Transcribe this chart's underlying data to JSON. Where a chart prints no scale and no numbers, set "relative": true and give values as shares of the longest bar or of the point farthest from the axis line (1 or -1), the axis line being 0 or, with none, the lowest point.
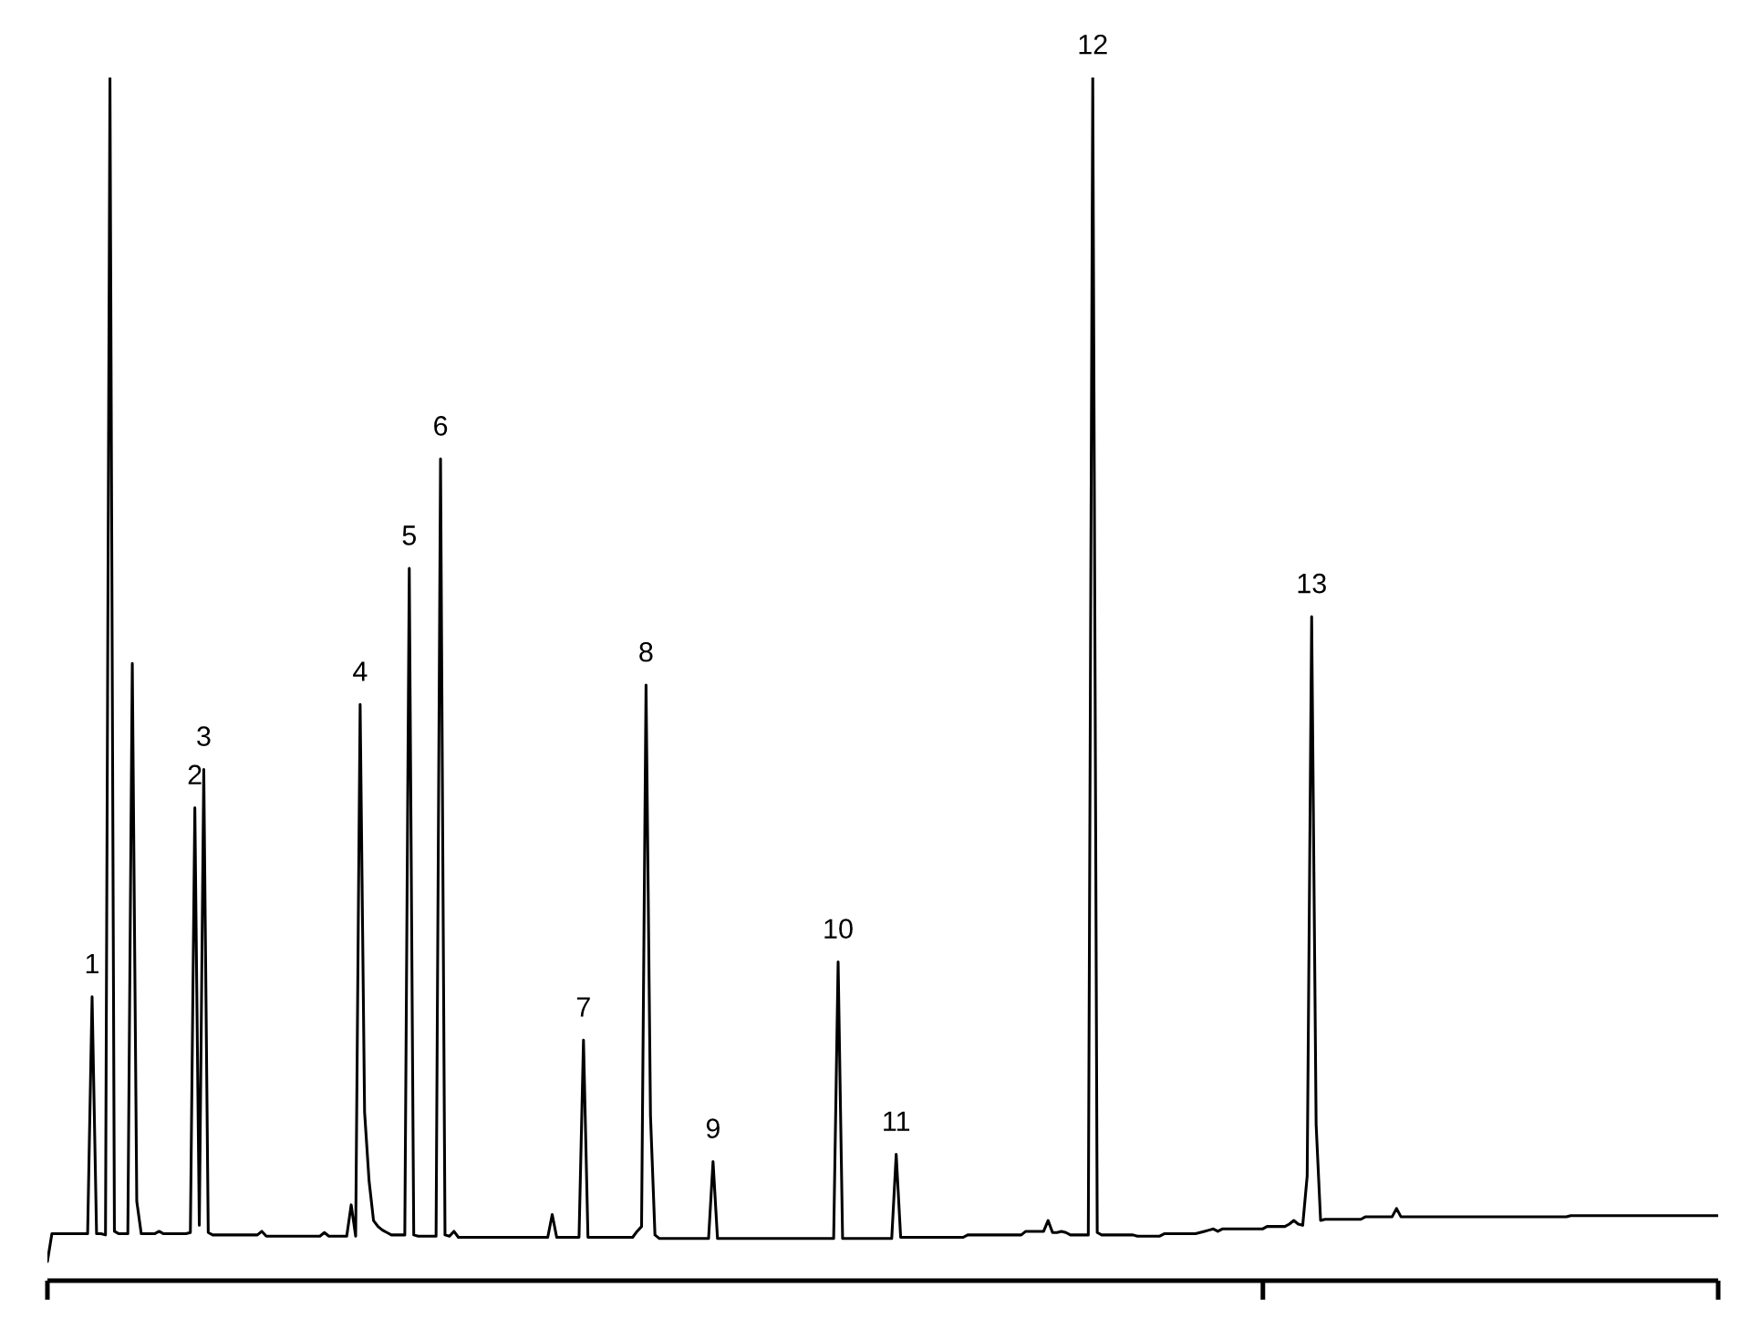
{
  "chart_data": {
    "type": "line",
    "relative": true,
    "tick_labels": false,
    "color": "#000000",
    "line_style": "solid",
    "categories": [
      null,
      null,
      null,
      null,
      null,
      null,
      null,
      null,
      null,
      null,
      null,
      null,
      null,
      null,
      null,
      null,
      null,
      null,
      null,
      null,
      null,
      null,
      null,
      null,
      null,
      null,
      null,
      null,
      null,
      null,
      null,
      null,
      null,
      null,
      null,
      null,
      null,
      null,
      null,
      null,
      null,
      null,
      null,
      null,
      null,
      null,
      null,
      null,
      null,
      null,
      null,
      null,
      null,
      null,
      null,
      null,
      null,
      null,
      null,
      null,
      null,
      null,
      null,
      null,
      null,
      null,
      null,
      null,
      null,
      null,
      null,
      null,
      null,
      null,
      null,
      null,
      null,
      null,
      null,
      null,
      null,
      null,
      null,
      null,
      null,
      null,
      null,
      null,
      null,
      null,
      null,
      null,
      null,
      null,
      null,
      null,
      null,
      null,
      null,
      null,
      null,
      null,
      null,
      null,
      null,
      null,
      null,
      null,
      null,
      null,
      null,
      null,
      null,
      null,
      null,
      null,
      null,
      null,
      null,
      null,
      null,
      null,
      null,
      null,
      null,
      null,
      null,
      null,
      null,
      null,
      null,
      null,
      null,
      null,
      null,
      null,
      null,
      null,
      null,
      null,
      null,
      null,
      null,
      null,
      null,
      null,
      null,
      null,
      null,
      null,
      null,
      null,
      null,
      null,
      null,
      null,
      null,
      null,
      null,
      null,
      null,
      null,
      null,
      null,
      null,
      null,
      null,
      null,
      null,
      null,
      null,
      null,
      null,
      null,
      null,
      null,
      null,
      null,
      null,
      null,
      null,
      null,
      null,
      null,
      null,
      null,
      null,
      null,
      null,
      null,
      null,
      null,
      null,
      null,
      null,
      null,
      null,
      null,
      null,
      null,
      null,
      null,
      null,
      null,
      null,
      null,
      null,
      null,
      null,
      null,
      null,
      null,
      null,
      null,
      null,
      null,
      null,
      null,
      null,
      null,
      null,
      null,
      null,
      null,
      null,
      null,
      null,
      null,
      null,
      null,
      null,
      null,
      null,
      null,
      null,
      null,
      null,
      null,
      null,
      null,
      null,
      null,
      null,
      null,
      null,
      null,
      null,
      null,
      null,
      null,
      null,
      null,
      null,
      null,
      null,
      null,
      null,
      null,
      null,
      null,
      null,
      null,
      null,
      null,
      null,
      null,
      null,
      null,
      null,
      null,
      null,
      null,
      null,
      null,
      null,
      null,
      null,
      null,
      null,
      null,
      null,
      null,
      null,
      null,
      null,
      null,
      null,
      null,
      null,
      null,
      null,
      null,
      null,
      null,
      null,
      null,
      null,
      null,
      null,
      null,
      null,
      null,
      null,
      null,
      null,
      null,
      null,
      null,
      null,
      null,
      null,
      null,
      null,
      null,
      null,
      null,
      null,
      null,
      null,
      null,
      null,
      null,
      null,
      null,
      null,
      null,
      null,
      null,
      null,
      null,
      null,
      null,
      null,
      null,
      null,
      null,
      null,
      null,
      null,
      null,
      null,
      null,
      null,
      null,
      null,
      null,
      null,
      null,
      null,
      null,
      null,
      null,
      null,
      null,
      null,
      null,
      null,
      null,
      null,
      null,
      null,
      null,
      null,
      null,
      null,
      null,
      null,
      null,
      null,
      null,
      null,
      null,
      null,
      null,
      null
    ],
    "values": [
      0.016,
      0.039,
      0.039,
      0.039,
      0.039,
      0.039,
      0.039,
      0.039,
      0.039,
      0.039,
      0.236,
      0.039,
      0.039,
      0.038,
      1,
      0.041,
      0.039,
      0.039,
      0.039,
      0.513,
      0.066,
      0.039,
      0.039,
      0.039,
      0.039,
      0.041,
      0.039,
      0.039,
      0.039,
      0.039,
      0.039,
      0.039,
      0.04,
      0.393,
      0.046,
      0.425,
      0.04,
      0.038,
      0.038,
      0.038,
      0.038,
      0.038,
      0.038,
      0.038,
      0.038,
      0.038,
      0.038,
      0.038,
      0.041,
      0.037,
      0.037,
      0.037,
      0.037,
      0.037,
      0.037,
      0.037,
      0.037,
      0.037,
      0.037,
      0.037,
      0.037,
      0.037,
      0.04,
      0.037,
      0.037,
      0.037,
      0.037,
      0.037,
      0.063,
      0.037,
      0.479,
      0.14,
      0.083,
      0.05,
      0.045,
      0.042,
      0.04,
      0.038,
      0.038,
      0.038,
      0.038,
      0.592,
      0.038,
      0.037,
      0.037,
      0.037,
      0.037,
      0.037,
      0.683,
      0.038,
      0.037,
      0.041,
      0.036,
      0.036,
      0.036,
      0.036,
      0.036,
      0.036,
      0.036,
      0.036,
      0.036,
      0.036,
      0.036,
      0.036,
      0.036,
      0.036,
      0.036,
      0.036,
      0.036,
      0.036,
      0.036,
      0.036,
      0.036,
      0.055,
      0.036,
      0.036,
      0.036,
      0.036,
      0.036,
      0.036,
      0.2,
      0.036,
      0.036,
      0.036,
      0.036,
      0.036,
      0.036,
      0.036,
      0.036,
      0.036,
      0.036,
      0.036,
      0.041,
      0.045,
      0.495,
      0.137,
      0.038,
      0.035,
      0.035,
      0.035,
      0.035,
      0.035,
      0.035,
      0.035,
      0.035,
      0.035,
      0.035,
      0.035,
      0.035,
      0.099,
      0.035,
      0.035,
      0.035,
      0.035,
      0.035,
      0.035,
      0.035,
      0.035,
      0.035,
      0.035,
      0.035,
      0.035,
      0.035,
      0.035,
      0.035,
      0.035,
      0.035,
      0.035,
      0.035,
      0.035,
      0.035,
      0.035,
      0.035,
      0.035,
      0.035,
      0.035,
      0.035,
      0.265,
      0.035,
      0.035,
      0.035,
      0.035,
      0.035,
      0.035,
      0.035,
      0.035,
      0.035,
      0.035,
      0.035,
      0.035,
      0.105,
      0.036,
      0.036,
      0.036,
      0.036,
      0.036,
      0.036,
      0.036,
      0.036,
      0.036,
      0.036,
      0.036,
      0.036,
      0.036,
      0.036,
      0.036,
      0.038,
      0.038,
      0.038,
      0.038,
      0.038,
      0.038,
      0.038,
      0.038,
      0.038,
      0.038,
      0.038,
      0.038,
      0.038,
      0.041,
      0.041,
      0.041,
      0.041,
      0.041,
      0.05,
      0.04,
      0.04,
      0.041,
      0.04,
      0.038,
      0.038,
      0.038,
      0.038,
      0.038,
      1,
      0.04,
      0.038,
      0.038,
      0.038,
      0.038,
      0.038,
      0.038,
      0.038,
      0.038,
      0.037,
      0.037,
      0.037,
      0.037,
      0.037,
      0.037,
      0.039,
      0.039,
      0.039,
      0.039,
      0.039,
      0.039,
      0.039,
      0.039,
      0.04,
      0.041,
      0.042,
      0.043,
      0.041,
      0.043,
      0.043,
      0.043,
      0.043,
      0.043,
      0.043,
      0.043,
      0.043,
      0.043,
      0.043,
      0.045,
      0.045,
      0.045,
      0.045,
      0.045,
      0.047,
      0.05,
      0.047,
      0.046,
      0.087,
      0.552,
      0.13,
      0.05,
      0.051,
      0.051,
      0.051,
      0.051,
      0.051,
      0.051,
      0.051,
      0.051,
      0.051,
      0.053,
      0.053,
      0.053,
      0.053,
      0.053,
      0.053,
      0.053,
      0.06,
      0.053,
      0.053,
      0.053,
      0.053,
      0.053,
      0.053,
      0.053,
      0.053,
      0.053,
      0.053,
      0.053,
      0.053,
      0.053,
      0.053,
      0.053,
      0.053,
      0.053,
      0.053,
      0.053,
      0.053,
      0.053,
      0.053,
      0.053,
      0.053,
      0.053,
      0.053,
      0.053,
      0.053,
      0.053,
      0.053,
      0.053,
      0.053,
      0.053,
      0.053,
      0.053,
      0.053,
      0.053,
      0.053,
      0.054,
      0.054,
      0.054,
      0.054,
      0.054,
      0.054,
      0.054,
      0.054,
      0.054,
      0.054,
      0.054,
      0.054,
      0.054,
      0.054,
      0.054,
      0.054,
      0.054,
      0.054,
      0.054,
      0.054,
      0.054,
      0.054,
      0.054,
      0.054,
      0.054,
      0.054,
      0.054,
      0.054,
      0.054,
      0.054,
      0.054,
      0.054,
      0.054,
      0.054
    ],
    "annotations": [
      {
        "text": "1",
        "y": 0.236
      },
      {
        "text": "2",
        "y": 0.393
      },
      {
        "text": "3",
        "y": 0.425
      },
      {
        "text": "4",
        "y": 0.479
      },
      {
        "text": "5",
        "y": 0.592
      },
      {
        "text": "6",
        "y": 0.683
      },
      {
        "text": "7",
        "y": 0.2
      },
      {
        "text": "8",
        "y": 0.495
      },
      {
        "text": "9",
        "y": 0.099
      },
      {
        "text": "10",
        "y": 0.265
      },
      {
        "text": "11",
        "y": 0.105
      },
      {
        "text": "12",
        "y": 1
      },
      {
        "text": "13",
        "y": 0.552
      }
    ]
  }
}
